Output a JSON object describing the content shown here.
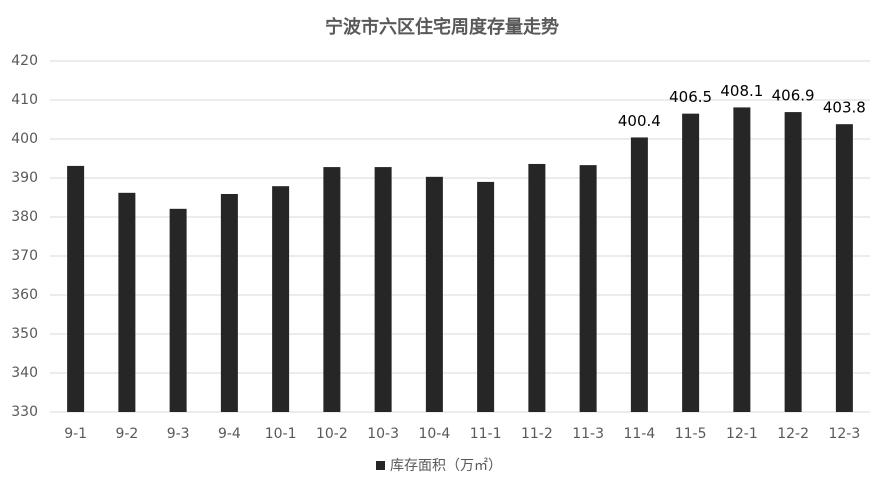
{
  "chart_data": {
    "type": "bar",
    "title": "宁波市六区住宅周度存量走势",
    "categories": [
      "9-1",
      "9-2",
      "9-3",
      "9-4",
      "10-1",
      "10-2",
      "10-3",
      "10-4",
      "11-1",
      "11-2",
      "11-3",
      "11-4",
      "11-5",
      "12-1",
      "12-2",
      "12-3"
    ],
    "series": [
      {
        "name": "库存面积（万㎡）",
        "color": "#262626",
        "values": [
          393.1,
          386.2,
          382.1,
          385.9,
          387.9,
          392.8,
          392.8,
          390.3,
          389.0,
          393.6,
          393.3,
          400.4,
          406.5,
          408.1,
          406.9,
          403.8
        ],
        "show_labels": [
          false,
          false,
          false,
          false,
          false,
          false,
          false,
          false,
          false,
          false,
          false,
          true,
          true,
          true,
          true,
          true
        ]
      }
    ],
    "ylim": [
      330,
      420
    ],
    "yticks": [
      330,
      340,
      350,
      360,
      370,
      380,
      390,
      400,
      410,
      420
    ],
    "grid": true,
    "legend": "bottom"
  }
}
